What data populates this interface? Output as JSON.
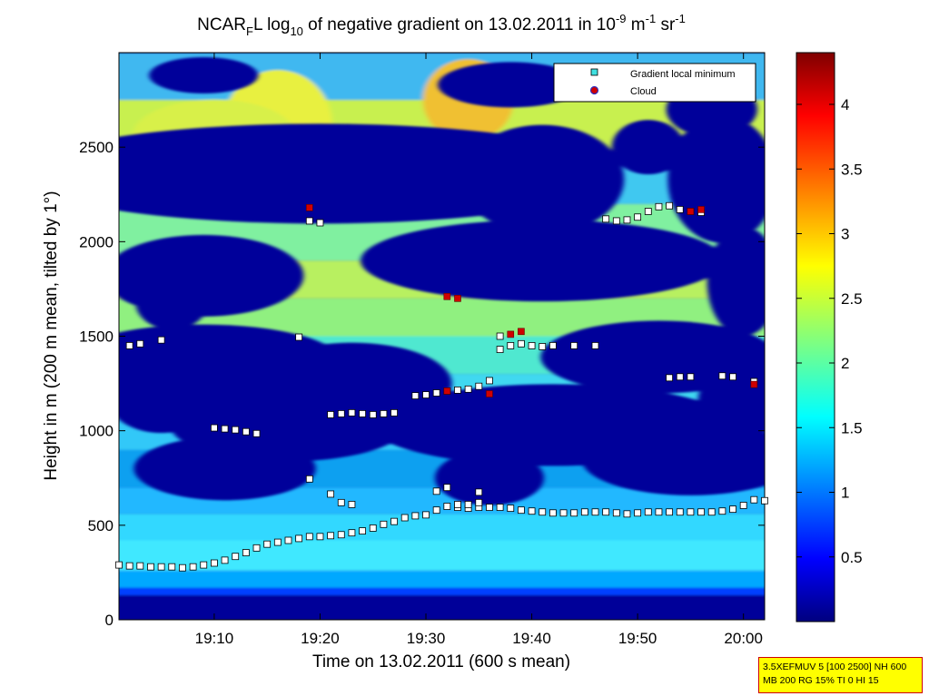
{
  "chart_data": {
    "type": "heatmap",
    "title_parts": {
      "a": "NCAR",
      "a_sub": "F",
      "b": "L log",
      "b_sub": "10",
      "c": " of negative gradient on 13.02.2011 in 10",
      "c_sup": "-9",
      "d": " m",
      "d_sup": "-1",
      "e": " sr",
      "e_sup": "-1"
    },
    "xlabel": "Time on 13.02.2011 (600 s mean)",
    "ylabel": "Height in m (200 m mean, tilted by 1°)",
    "xlim_minutes": [
      1141,
      1202
    ],
    "ylim": [
      0,
      3000
    ],
    "x_ticks": [
      {
        "label": "19:10",
        "minutes": 1150
      },
      {
        "label": "19:20",
        "minutes": 1160
      },
      {
        "label": "19:30",
        "minutes": 1170
      },
      {
        "label": "19:40",
        "minutes": 1180
      },
      {
        "label": "19:50",
        "minutes": 1190
      },
      {
        "label": "20:00",
        "minutes": 1200
      }
    ],
    "y_ticks": [
      {
        "label": "0",
        "value": 0
      },
      {
        "label": "500",
        "value": 500
      },
      {
        "label": "1000",
        "value": 1000
      },
      {
        "label": "1500",
        "value": 1500
      },
      {
        "label": "2000",
        "value": 2000
      },
      {
        "label": "2500",
        "value": 2500
      }
    ],
    "colorbar": {
      "range": [
        0,
        4.4
      ],
      "ticks": [
        {
          "label": "0.5",
          "value": 0.5
        },
        {
          "label": "1",
          "value": 1
        },
        {
          "label": "1.5",
          "value": 1.5
        },
        {
          "label": "2",
          "value": 2
        },
        {
          "label": "2.5",
          "value": 2.5
        },
        {
          "label": "3",
          "value": 3
        },
        {
          "label": "3.5",
          "value": 3.5
        },
        {
          "label": "4",
          "value": 4
        }
      ],
      "colormap": "jet"
    },
    "legend": {
      "placement": "top-right",
      "entries": [
        {
          "label": "Gradient local minimum",
          "marker": "square",
          "color": "#40e0e0"
        },
        {
          "label": "Cloud",
          "marker": "circle",
          "color": "#d00000"
        }
      ]
    },
    "gradient_minimum_series": [
      {
        "name": "boundary-layer",
        "points": [
          [
            1141,
            290
          ],
          [
            1142,
            285
          ],
          [
            1143,
            285
          ],
          [
            1144,
            280
          ],
          [
            1145,
            280
          ],
          [
            1146,
            280
          ],
          [
            1147,
            275
          ],
          [
            1148,
            280
          ],
          [
            1149,
            290
          ],
          [
            1150,
            300
          ],
          [
            1151,
            315
          ],
          [
            1152,
            335
          ],
          [
            1153,
            355
          ],
          [
            1154,
            380
          ],
          [
            1155,
            400
          ],
          [
            1156,
            410
          ],
          [
            1157,
            420
          ],
          [
            1158,
            430
          ],
          [
            1159,
            440
          ],
          [
            1160,
            440
          ],
          [
            1161,
            445
          ],
          [
            1162,
            450
          ],
          [
            1163,
            460
          ],
          [
            1164,
            470
          ],
          [
            1165,
            485
          ],
          [
            1166,
            505
          ],
          [
            1167,
            520
          ],
          [
            1168,
            540
          ],
          [
            1169,
            550
          ],
          [
            1170,
            555
          ],
          [
            1171,
            580
          ],
          [
            1172,
            600
          ],
          [
            1173,
            595
          ],
          [
            1174,
            590
          ],
          [
            1175,
            595
          ],
          [
            1176,
            595
          ],
          [
            1177,
            595
          ],
          [
            1178,
            590
          ],
          [
            1179,
            580
          ],
          [
            1180,
            575
          ],
          [
            1181,
            570
          ],
          [
            1182,
            565
          ],
          [
            1183,
            565
          ],
          [
            1184,
            565
          ],
          [
            1185,
            570
          ],
          [
            1186,
            570
          ],
          [
            1187,
            570
          ],
          [
            1188,
            565
          ],
          [
            1189,
            560
          ],
          [
            1190,
            565
          ],
          [
            1191,
            570
          ],
          [
            1192,
            570
          ],
          [
            1193,
            570
          ],
          [
            1194,
            570
          ],
          [
            1195,
            570
          ],
          [
            1196,
            570
          ],
          [
            1197,
            570
          ],
          [
            1198,
            575
          ],
          [
            1199,
            585
          ],
          [
            1200,
            605
          ],
          [
            1201,
            635
          ],
          [
            1202,
            630
          ]
        ]
      },
      {
        "name": "layer-1000",
        "points": [
          [
            1150,
            1015
          ],
          [
            1151,
            1010
          ],
          [
            1152,
            1005
          ],
          [
            1153,
            995
          ],
          [
            1154,
            985
          ],
          [
            1161,
            1085
          ],
          [
            1162,
            1090
          ],
          [
            1163,
            1095
          ],
          [
            1164,
            1090
          ],
          [
            1165,
            1085
          ],
          [
            1166,
            1090
          ],
          [
            1167,
            1095
          ]
        ]
      },
      {
        "name": "layer-1200",
        "points": [
          [
            1169,
            1185
          ],
          [
            1170,
            1190
          ],
          [
            1171,
            1200
          ],
          [
            1172,
            1210
          ],
          [
            1173,
            1215
          ],
          [
            1174,
            1220
          ],
          [
            1175,
            1235
          ],
          [
            1176,
            1265
          ]
        ]
      },
      {
        "name": "layer-1450",
        "points": [
          [
            1177,
            1430
          ],
          [
            1178,
            1450
          ],
          [
            1179,
            1460
          ],
          [
            1180,
            1450
          ],
          [
            1181,
            1445
          ],
          [
            1182,
            1450
          ],
          [
            1184,
            1450
          ]
        ]
      },
      {
        "name": "layer-1280",
        "points": [
          [
            1193,
            1280
          ],
          [
            1194,
            1285
          ],
          [
            1195,
            1285
          ],
          [
            1198,
            1290
          ],
          [
            1199,
            1285
          ],
          [
            1201,
            1260
          ]
        ]
      },
      {
        "name": "layer-2100",
        "points": [
          [
            1187,
            2120
          ],
          [
            1188,
            2110
          ],
          [
            1189,
            2115
          ],
          [
            1190,
            2130
          ],
          [
            1191,
            2160
          ],
          [
            1192,
            2185
          ],
          [
            1193,
            2190
          ],
          [
            1194,
            2170
          ],
          [
            1195,
            2160
          ],
          [
            1196,
            2155
          ]
        ]
      },
      {
        "name": "scattered",
        "points": [
          [
            1142,
            1450
          ],
          [
            1143,
            1460
          ],
          [
            1145,
            1480
          ],
          [
            1158,
            1495
          ],
          [
            1159,
            2110
          ],
          [
            1160,
            2100
          ],
          [
            1159,
            745
          ],
          [
            1161,
            665
          ],
          [
            1162,
            620
          ],
          [
            1163,
            610
          ],
          [
            1173,
            610
          ],
          [
            1174,
            610
          ],
          [
            1175,
            620
          ],
          [
            1171,
            680
          ],
          [
            1172,
            700
          ],
          [
            1175,
            675
          ],
          [
            1177,
            1500
          ],
          [
            1186,
            1450
          ]
        ]
      }
    ],
    "cloud_points": [
      [
        1159,
        2180
      ],
      [
        1172,
        1710
      ],
      [
        1173,
        1700
      ],
      [
        1178,
        1510
      ],
      [
        1179,
        1525
      ],
      [
        1176,
        1195
      ],
      [
        1172,
        1210
      ],
      [
        1195,
        2160
      ],
      [
        1196,
        2170
      ],
      [
        1201,
        1245
      ]
    ],
    "info_box": {
      "line1": "3.5XEFMUV 5 [100 2500] NH 600",
      "line2": "MB 200 RG 15% TI 0 HI 15"
    }
  }
}
